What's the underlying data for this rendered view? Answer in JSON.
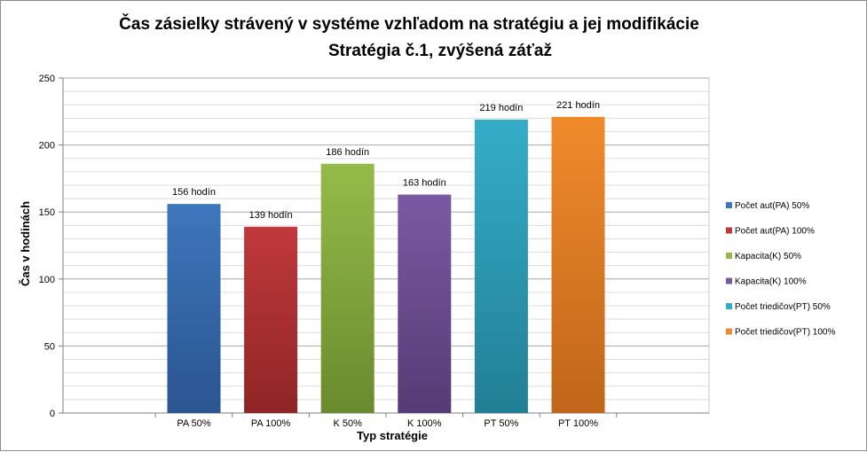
{
  "chart_data": {
    "type": "bar",
    "title": "Čas zásielky strávený v systéme vzhľadom na stratégiu a jej modifikácie",
    "subtitle": "Stratégia č.1,  zvýšená záťaž",
    "xlabel": "Typ stratégie",
    "ylabel": "Čas v hodinách",
    "ylim": [
      0,
      250
    ],
    "yticks": [
      0,
      50,
      100,
      150,
      200,
      250
    ],
    "grid": true,
    "legend_position": "right",
    "categories": [
      "PA 50%",
      "PA 100%",
      "K 50%",
      "K 100%",
      "PT 50%",
      "PT 100%"
    ],
    "values": [
      156,
      139,
      186,
      163,
      219,
      221
    ],
    "data_labels": [
      "156 hodín",
      "139 hodín",
      "186 hodín",
      "163 hodín",
      "219 hodín",
      "221 hodín"
    ],
    "legend": [
      "Počet aut(PA) 50%",
      "Počet aut(PA) 100%",
      "Kapacita(K) 50%",
      " Kapacita(K) 100%",
      "Počet triedičov(PT) 50%",
      "Počet triedičov(PT) 100%"
    ],
    "colors": [
      [
        "#3e76bd",
        "#2a5590"
      ],
      [
        "#c0393b",
        "#8f2526"
      ],
      [
        "#94bb49",
        "#6a8a2e"
      ],
      [
        "#7b59a2",
        "#553b75"
      ],
      [
        "#35adc9",
        "#227f95"
      ],
      [
        "#f08b2c",
        "#c0651a"
      ]
    ]
  }
}
